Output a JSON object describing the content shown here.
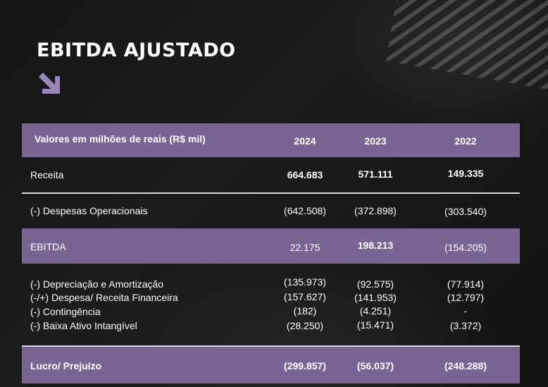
{
  "title": "EBITDA AJUSTADO",
  "header": {
    "label": "Valores em milhões de reais (R$ mil)",
    "years": [
      "2024",
      "2023",
      "2022"
    ]
  },
  "rows": {
    "receita": {
      "label": "Receita",
      "values": [
        "664.683",
        "571.111",
        "149.335"
      ]
    },
    "despesas": {
      "label": "(-) Despesas Operacionais",
      "values": [
        "(642.508)",
        "(372.898)",
        "(303.540)"
      ]
    },
    "ebitda": {
      "label": "EBITDA",
      "values": [
        "22.175",
        "198.213",
        "(154.205)"
      ]
    },
    "depreciacao": {
      "label": "(-) Depreciação e Amortização",
      "values": [
        "(135.973)",
        "(92.575)",
        "(77.914)"
      ]
    },
    "financeira": {
      "label": "(-/+) Despesa/ Receita Financeira",
      "values": [
        "(157.627)",
        "(141.953)",
        "(12.797)"
      ]
    },
    "contingencia": {
      "label": "(-) Contingência",
      "values": [
        "(182)",
        "(4.251)",
        "-"
      ]
    },
    "baixa": {
      "label": "(-) Baixa Ativo Intangível",
      "values": [
        "(28.250)",
        "(15.471)",
        "(3.372)"
      ]
    },
    "lucro": {
      "label": "Lucro/ Prejuízo",
      "values": [
        "(299.857)",
        "(56.037)",
        "(248.288)"
      ]
    }
  },
  "colors": {
    "accent": "#7a6494",
    "background": "#161616",
    "arrow": "#9b86b8"
  },
  "icons": {
    "arrow": "arrow-down-right-icon"
  }
}
